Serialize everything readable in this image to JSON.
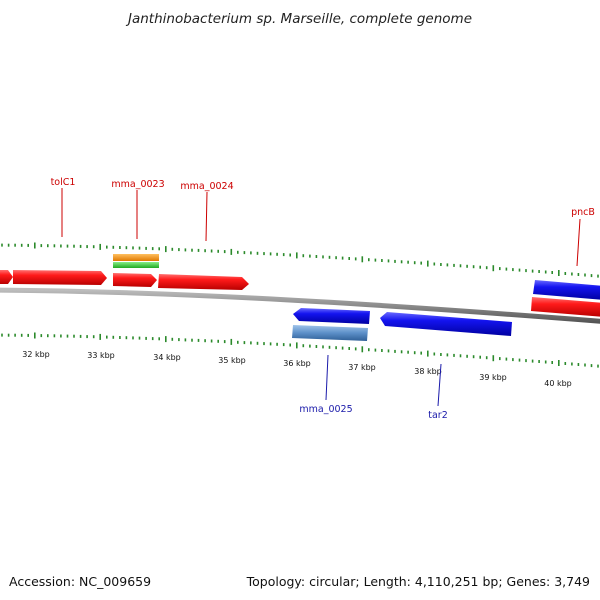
{
  "title": "Janthinobacterium sp. Marseille, complete genome",
  "footer": {
    "accession": "Accession: NC_009659",
    "summary": "Topology: circular; Length: 4,110,251 bp; Genes: 3,749"
  },
  "colors": {
    "forward_gene": "#ff0000",
    "reverse_gene": "#1010ee",
    "backbone": "#888888",
    "tick": "#2b8a2b",
    "forward_label": "#cc0000",
    "reverse_label": "#1a1aaa",
    "rna_orange": "#f28c00",
    "rna_green": "#33cc33",
    "pseudo_blue": "#5c8fc8"
  },
  "scale_labels": [
    "32 kbp",
    "33 kbp",
    "34 kbp",
    "35 kbp",
    "36 kbp",
    "37 kbp",
    "38 kbp",
    "39 kbp",
    "40 kbp"
  ],
  "gene_labels": [
    {
      "text": "tolC1",
      "strand": "forward"
    },
    {
      "text": "mma_0023",
      "strand": "forward"
    },
    {
      "text": "mma_0024",
      "strand": "forward"
    },
    {
      "text": "pncB",
      "strand": "forward"
    },
    {
      "text": "mma_0025",
      "strand": "reverse"
    },
    {
      "text": "tar2",
      "strand": "reverse"
    }
  ]
}
